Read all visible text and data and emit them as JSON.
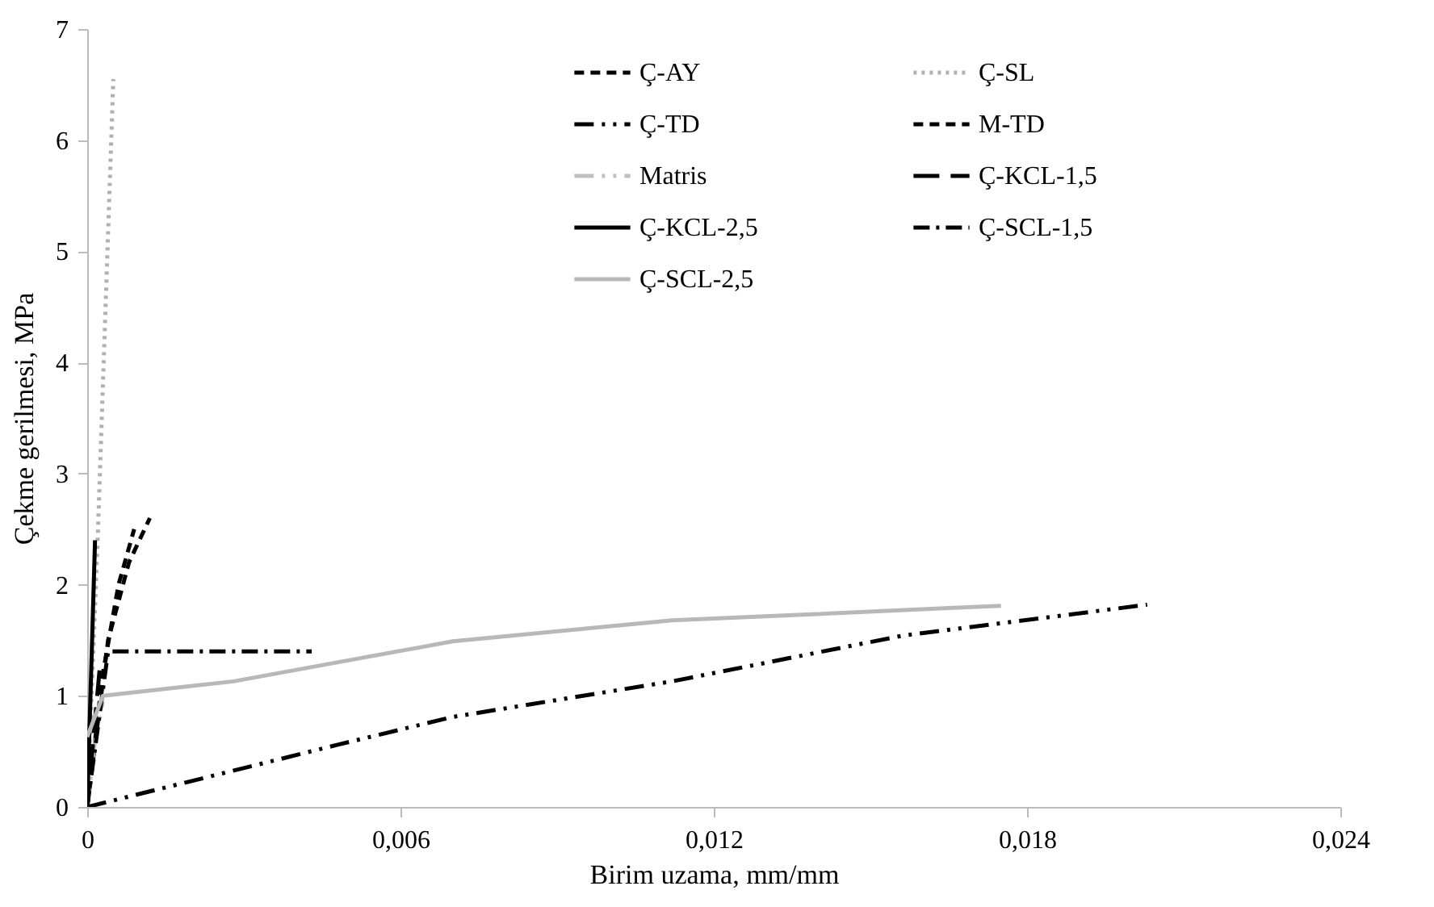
{
  "chart_data": {
    "type": "line",
    "xlabel": "Birim uzama, mm/mm",
    "ylabel": "Çekme gerilmesi, MPa",
    "xlim": [
      0,
      0.024
    ],
    "xticks": [
      0,
      {
        "value": 0.006,
        "label": "0,006"
      },
      {
        "value": 0.012,
        "label": "0,012"
      },
      {
        "value": 0.018,
        "label": "0,018"
      },
      {
        "value": 0.024,
        "label": "0,024"
      }
    ],
    "ylim": [
      0,
      7
    ],
    "yticks": [
      0,
      1,
      2,
      3,
      4,
      5,
      6,
      7
    ],
    "grid": false,
    "legend": "top right",
    "marker": "none",
    "series": [
      {
        "name": "Ç-AY",
        "color": "#000000",
        "line_style": "dashed",
        "x": [
          0,
          0.0004,
          0.0008,
          0.0012
        ],
        "values": [
          0,
          1.5,
          2.2,
          2.6
        ]
      },
      {
        "name": "Ç-SL",
        "color": "#b0b0b0",
        "line_style": "dotted",
        "x": [
          0,
          0.0002,
          0.0005
        ],
        "values": [
          0,
          2.4,
          6.55
        ]
      },
      {
        "name": "Ç-TD",
        "color": "#000000",
        "line_style": "dashdotdot",
        "x": [
          0,
          0.0048,
          0.007,
          0.0112,
          0.0156,
          0.0203
        ],
        "values": [
          0,
          0.56,
          0.81,
          1.13,
          1.54,
          1.82
        ]
      },
      {
        "name": "M-TD",
        "color": "#000000",
        "line_style": "dashed",
        "x": [
          0,
          0.0003,
          0.0006,
          0.0009
        ],
        "values": [
          0,
          1.2,
          2.0,
          2.5
        ]
      },
      {
        "name": "Matris",
        "color": "#c0c0c0",
        "line_style": "dashdotdot",
        "x": [
          0,
          0.00015,
          0.0003
        ],
        "values": [
          0,
          0.6,
          0.95
        ]
      },
      {
        "name": "Ç-KCL-1,5",
        "color": "#000000",
        "line_style": "longdash",
        "x": [
          0,
          0.00025
        ],
        "values": [
          0,
          1.3
        ]
      },
      {
        "name": "Ç-KCL-2,5",
        "color": "#000000",
        "line_style": "solid",
        "x": [
          0,
          0.00015
        ],
        "values": [
          0,
          2.4
        ]
      },
      {
        "name": "Ç-SCL-1,5",
        "color": "#000000",
        "line_style": "dashdot",
        "x": [
          0,
          0.0004,
          0.0043
        ],
        "values": [
          0,
          1.4,
          1.4
        ]
      },
      {
        "name": "Ç-SCL-2,5",
        "color": "#b8b8b8",
        "line_style": "solid",
        "x": [
          0,
          0.0003,
          0.0028,
          0.007,
          0.0112,
          0.0137,
          0.0165,
          0.0175
        ],
        "values": [
          0.63,
          1.0,
          1.13,
          1.49,
          1.68,
          1.73,
          1.79,
          1.81
        ]
      }
    ]
  }
}
